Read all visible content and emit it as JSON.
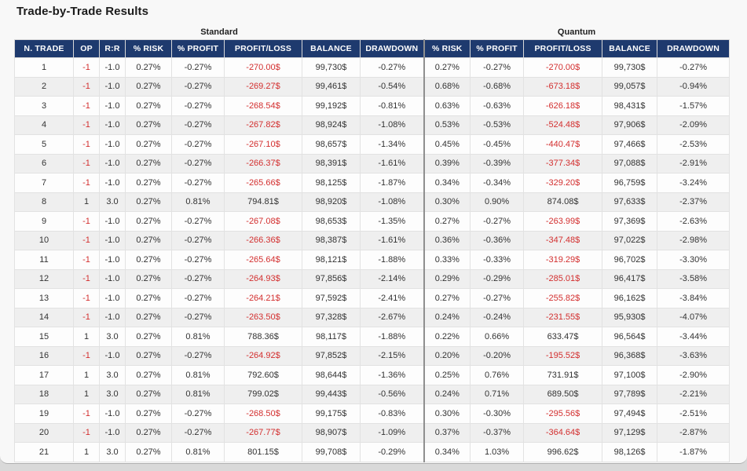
{
  "title": "Trade-by-Trade Results",
  "groups": {
    "standard": "Standard",
    "quantum": "Quantum"
  },
  "columns": [
    "N. TRADE",
    "OP",
    "R:R",
    "% RISK",
    "% PROFIT",
    "PROFIT/LOSS",
    "BALANCE",
    "DRAWDOWN",
    "% RISK",
    "% PROFIT",
    "PROFIT/LOSS",
    "BALANCE",
    "DRAWDOWN"
  ],
  "column_keys": [
    "n-trade",
    "op",
    "rr",
    "std-risk",
    "std-profit",
    "std-profit-loss",
    "std-balance",
    "std-drawdown",
    "q-risk",
    "q-profit",
    "q-profit-loss",
    "q-balance",
    "q-drawdown"
  ],
  "colors": {
    "header_bg": "#1e3a6e",
    "negative": "#d32f2f",
    "stripe": "#efefef"
  },
  "style": {
    "negative_red_columns": [
      1,
      5,
      10
    ],
    "quantum_divider_column": 8
  },
  "rows": [
    [
      "1",
      "-1",
      "-1.0",
      "0.27%",
      "-0.27%",
      "-270.00$",
      "99,730$",
      "-0.27%",
      "0.27%",
      "-0.27%",
      "-270.00$",
      "99,730$",
      "-0.27%"
    ],
    [
      "2",
      "-1",
      "-1.0",
      "0.27%",
      "-0.27%",
      "-269.27$",
      "99,461$",
      "-0.54%",
      "0.68%",
      "-0.68%",
      "-673.18$",
      "99,057$",
      "-0.94%"
    ],
    [
      "3",
      "-1",
      "-1.0",
      "0.27%",
      "-0.27%",
      "-268.54$",
      "99,192$",
      "-0.81%",
      "0.63%",
      "-0.63%",
      "-626.18$",
      "98,431$",
      "-1.57%"
    ],
    [
      "4",
      "-1",
      "-1.0",
      "0.27%",
      "-0.27%",
      "-267.82$",
      "98,924$",
      "-1.08%",
      "0.53%",
      "-0.53%",
      "-524.48$",
      "97,906$",
      "-2.09%"
    ],
    [
      "5",
      "-1",
      "-1.0",
      "0.27%",
      "-0.27%",
      "-267.10$",
      "98,657$",
      "-1.34%",
      "0.45%",
      "-0.45%",
      "-440.47$",
      "97,466$",
      "-2.53%"
    ],
    [
      "6",
      "-1",
      "-1.0",
      "0.27%",
      "-0.27%",
      "-266.37$",
      "98,391$",
      "-1.61%",
      "0.39%",
      "-0.39%",
      "-377.34$",
      "97,088$",
      "-2.91%"
    ],
    [
      "7",
      "-1",
      "-1.0",
      "0.27%",
      "-0.27%",
      "-265.66$",
      "98,125$",
      "-1.87%",
      "0.34%",
      "-0.34%",
      "-329.20$",
      "96,759$",
      "-3.24%"
    ],
    [
      "8",
      "1",
      "3.0",
      "0.27%",
      "0.81%",
      "794.81$",
      "98,920$",
      "-1.08%",
      "0.30%",
      "0.90%",
      "874.08$",
      "97,633$",
      "-2.37%"
    ],
    [
      "9",
      "-1",
      "-1.0",
      "0.27%",
      "-0.27%",
      "-267.08$",
      "98,653$",
      "-1.35%",
      "0.27%",
      "-0.27%",
      "-263.99$",
      "97,369$",
      "-2.63%"
    ],
    [
      "10",
      "-1",
      "-1.0",
      "0.27%",
      "-0.27%",
      "-266.36$",
      "98,387$",
      "-1.61%",
      "0.36%",
      "-0.36%",
      "-347.48$",
      "97,022$",
      "-2.98%"
    ],
    [
      "11",
      "-1",
      "-1.0",
      "0.27%",
      "-0.27%",
      "-265.64$",
      "98,121$",
      "-1.88%",
      "0.33%",
      "-0.33%",
      "-319.29$",
      "96,702$",
      "-3.30%"
    ],
    [
      "12",
      "-1",
      "-1.0",
      "0.27%",
      "-0.27%",
      "-264.93$",
      "97,856$",
      "-2.14%",
      "0.29%",
      "-0.29%",
      "-285.01$",
      "96,417$",
      "-3.58%"
    ],
    [
      "13",
      "-1",
      "-1.0",
      "0.27%",
      "-0.27%",
      "-264.21$",
      "97,592$",
      "-2.41%",
      "0.27%",
      "-0.27%",
      "-255.82$",
      "96,162$",
      "-3.84%"
    ],
    [
      "14",
      "-1",
      "-1.0",
      "0.27%",
      "-0.27%",
      "-263.50$",
      "97,328$",
      "-2.67%",
      "0.24%",
      "-0.24%",
      "-231.55$",
      "95,930$",
      "-4.07%"
    ],
    [
      "15",
      "1",
      "3.0",
      "0.27%",
      "0.81%",
      "788.36$",
      "98,117$",
      "-1.88%",
      "0.22%",
      "0.66%",
      "633.47$",
      "96,564$",
      "-3.44%"
    ],
    [
      "16",
      "-1",
      "-1.0",
      "0.27%",
      "-0.27%",
      "-264.92$",
      "97,852$",
      "-2.15%",
      "0.20%",
      "-0.20%",
      "-195.52$",
      "96,368$",
      "-3.63%"
    ],
    [
      "17",
      "1",
      "3.0",
      "0.27%",
      "0.81%",
      "792.60$",
      "98,644$",
      "-1.36%",
      "0.25%",
      "0.76%",
      "731.91$",
      "97,100$",
      "-2.90%"
    ],
    [
      "18",
      "1",
      "3.0",
      "0.27%",
      "0.81%",
      "799.02$",
      "99,443$",
      "-0.56%",
      "0.24%",
      "0.71%",
      "689.50$",
      "97,789$",
      "-2.21%"
    ],
    [
      "19",
      "-1",
      "-1.0",
      "0.27%",
      "-0.27%",
      "-268.50$",
      "99,175$",
      "-0.83%",
      "0.30%",
      "-0.30%",
      "-295.56$",
      "97,494$",
      "-2.51%"
    ],
    [
      "20",
      "-1",
      "-1.0",
      "0.27%",
      "-0.27%",
      "-267.77$",
      "98,907$",
      "-1.09%",
      "0.37%",
      "-0.37%",
      "-364.64$",
      "97,129$",
      "-2.87%"
    ],
    [
      "21",
      "1",
      "3.0",
      "0.27%",
      "0.81%",
      "801.15$",
      "99,708$",
      "-0.29%",
      "0.34%",
      "1.03%",
      "996.62$",
      "98,126$",
      "-1.87%"
    ]
  ]
}
